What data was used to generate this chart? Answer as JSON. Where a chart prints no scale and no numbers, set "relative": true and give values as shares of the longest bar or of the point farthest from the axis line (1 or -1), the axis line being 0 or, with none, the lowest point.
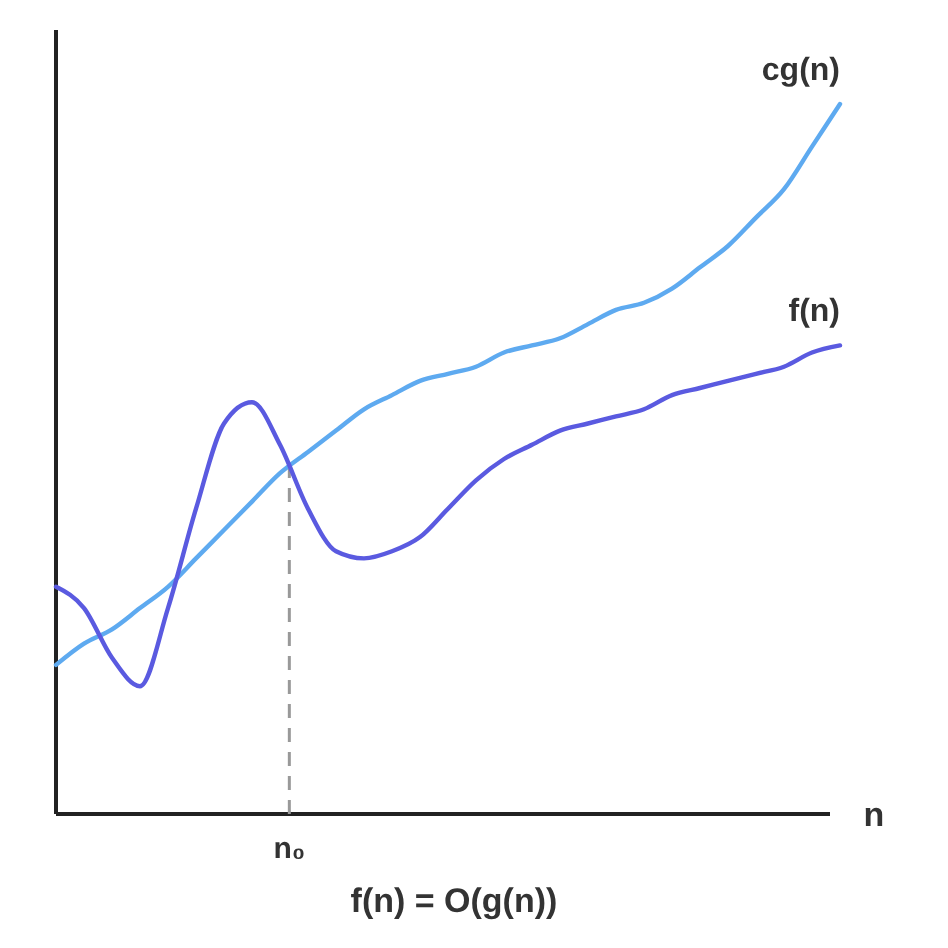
{
  "chart_data": {
    "type": "line",
    "relative": true,
    "xlabel": "n",
    "annotations": [
      "n₀",
      "f(n) = O(g(n))"
    ],
    "categories": [
      null,
      null,
      null,
      null,
      null,
      null,
      null,
      null,
      null,
      null,
      null,
      null,
      null,
      null,
      null,
      null,
      null,
      null,
      null,
      null,
      null,
      null,
      null,
      null,
      null,
      null,
      null,
      null,
      null
    ],
    "series": [
      {
        "name": "cg(n)",
        "color": "#5eaaf0",
        "values": [
          0.21,
          0.24,
          0.26,
          0.29,
          0.32,
          0.36,
          0.4,
          0.44,
          0.48,
          0.51,
          0.54,
          0.57,
          0.59,
          0.61,
          0.62,
          0.63,
          0.65,
          0.66,
          0.67,
          0.69,
          0.71,
          0.72,
          0.74,
          0.77,
          0.8,
          0.84,
          0.88,
          0.94,
          1
        ]
      },
      {
        "name": "f(n)",
        "color": "#5a5ae0",
        "values": [
          0.32,
          0.29,
          0.22,
          0.18,
          0.29,
          0.43,
          0.55,
          0.58,
          0.52,
          0.43,
          0.37,
          0.36,
          0.37,
          0.39,
          0.43,
          0.47,
          0.5,
          0.52,
          0.54,
          0.55,
          0.56,
          0.57,
          0.59,
          0.6,
          0.61,
          0.62,
          0.63,
          0.65,
          0.66
        ]
      }
    ],
    "marker": "none",
    "line_style": "solid"
  }
}
